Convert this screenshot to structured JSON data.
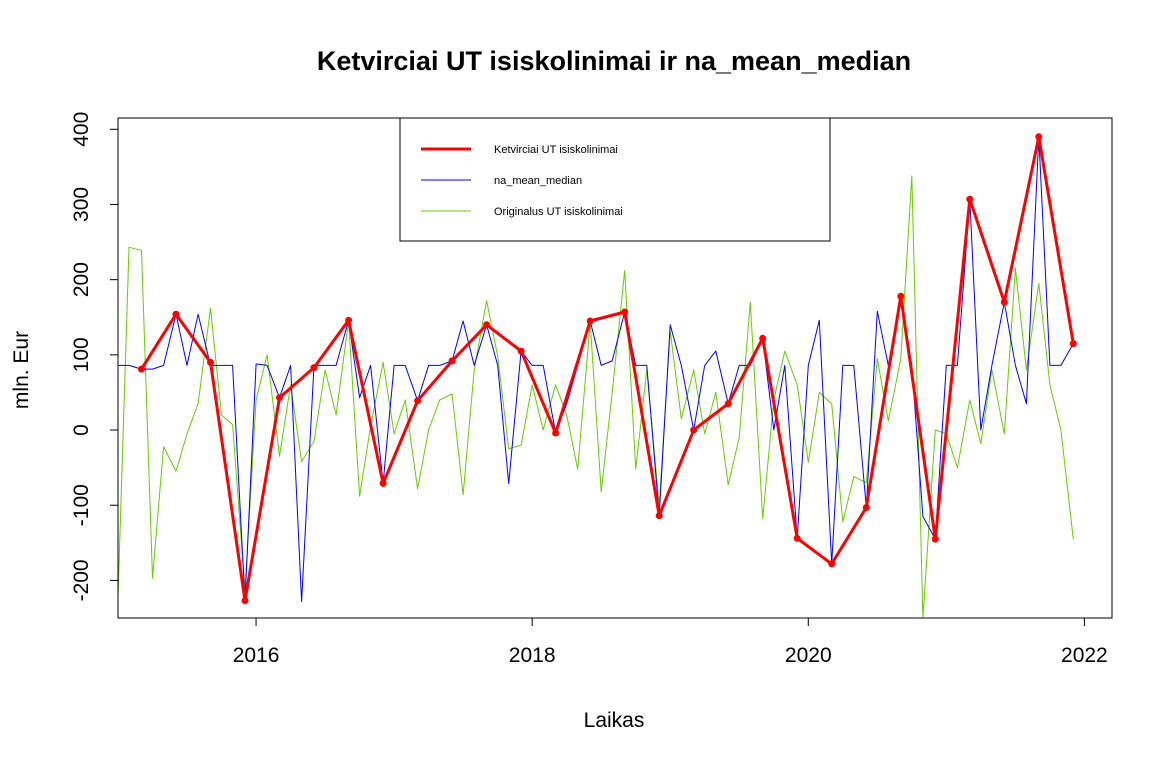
{
  "chart_data": {
    "type": "line",
    "title": "Ketvirciai UT isiskolinimai ir na_mean_median",
    "xlabel": "Laikas",
    "ylabel": "mln. Eur",
    "xlim": [
      2015.0,
      2022.2
    ],
    "ylim": [
      -250,
      415
    ],
    "xticks": [
      2016,
      2018,
      2020,
      2022
    ],
    "yticks": [
      -200,
      -100,
      0,
      100,
      200,
      300,
      400
    ],
    "legend_position": "top",
    "series": [
      {
        "name": "Ketvirciai UT isiskolinimai",
        "color": "#ff0000",
        "points": true,
        "x": [
          2015.17,
          2015.42,
          2015.67,
          2015.92,
          2016.17,
          2016.42,
          2016.67,
          2016.92,
          2017.17,
          2017.42,
          2017.67,
          2017.92,
          2018.17,
          2018.42,
          2018.67,
          2018.92,
          2019.17,
          2019.42,
          2019.67,
          2019.92,
          2020.17,
          2020.42,
          2020.67,
          2020.92,
          2021.17,
          2021.42,
          2021.67,
          2021.92
        ],
        "y": [
          81,
          154,
          90,
          -227,
          43,
          83,
          146,
          -71,
          39,
          92,
          140,
          105,
          -4,
          145,
          157,
          -114,
          0,
          35,
          122,
          -144,
          -178,
          -103,
          178,
          -145,
          307,
          170,
          390,
          115
        ]
      },
      {
        "name": "na_mean_median",
        "color": "#0000ff",
        "points": false,
        "x": [
          2015.0,
          2015.08,
          2015.17,
          2015.25,
          2015.33,
          2015.42,
          2015.5,
          2015.58,
          2015.67,
          2015.75,
          2015.83,
          2015.92,
          2016.0,
          2016.08,
          2016.17,
          2016.25,
          2016.33,
          2016.42,
          2016.5,
          2016.58,
          2016.67,
          2016.75,
          2016.83,
          2016.92,
          2017.0,
          2017.08,
          2017.17,
          2017.25,
          2017.33,
          2017.42,
          2017.5,
          2017.58,
          2017.67,
          2017.75,
          2017.83,
          2017.92,
          2018.0,
          2018.08,
          2018.17,
          2018.25,
          2018.33,
          2018.42,
          2018.5,
          2018.58,
          2018.67,
          2018.75,
          2018.83,
          2018.92,
          2019.0,
          2019.08,
          2019.17,
          2019.25,
          2019.33,
          2019.42,
          2019.5,
          2019.58,
          2019.67,
          2019.75,
          2019.83,
          2019.92,
          2020.0,
          2020.08,
          2020.17,
          2020.25,
          2020.33,
          2020.42,
          2020.5,
          2020.58,
          2020.67,
          2020.75,
          2020.83,
          2020.92,
          2021.0,
          2021.08,
          2021.17,
          2021.25,
          2021.33,
          2021.42,
          2021.5,
          2021.58,
          2021.67,
          2021.75,
          2021.83,
          2021.92
        ],
        "y": [
          86,
          86,
          81,
          81,
          86,
          154,
          86,
          154,
          86,
          86,
          86,
          -227,
          88,
          86,
          43,
          86,
          -228,
          86,
          86,
          86,
          146,
          43,
          86,
          -71,
          86,
          86,
          39,
          86,
          86,
          92,
          145,
          86,
          140,
          86,
          -71,
          105,
          86,
          86,
          -4,
          35,
          86,
          145,
          86,
          92,
          157,
          86,
          86,
          -114,
          140,
          86,
          0,
          86,
          105,
          35,
          86,
          86,
          122,
          0,
          86,
          -144,
          86,
          146,
          -178,
          86,
          86,
          -103,
          158,
          86,
          178,
          86,
          -115,
          -145,
          86,
          86,
          307,
          0,
          86,
          170,
          86,
          35,
          390,
          86,
          86,
          115
        ]
      },
      {
        "name": "Originalus UT isiskolinimai",
        "color": "#66cc00",
        "points": false,
        "x": [
          2015.0,
          2015.08,
          2015.17,
          2015.25,
          2015.33,
          2015.42,
          2015.5,
          2015.58,
          2015.67,
          2015.75,
          2015.83,
          2015.92,
          2016.0,
          2016.08,
          2016.17,
          2016.25,
          2016.33,
          2016.42,
          2016.5,
          2016.58,
          2016.67,
          2016.75,
          2016.83,
          2016.92,
          2017.0,
          2017.08,
          2017.17,
          2017.25,
          2017.33,
          2017.42,
          2017.5,
          2017.58,
          2017.67,
          2017.75,
          2017.83,
          2017.92,
          2018.0,
          2018.08,
          2018.17,
          2018.25,
          2018.33,
          2018.42,
          2018.5,
          2018.58,
          2018.67,
          2018.75,
          2018.83,
          2018.92,
          2019.0,
          2019.08,
          2019.17,
          2019.25,
          2019.33,
          2019.42,
          2019.5,
          2019.58,
          2019.67,
          2019.75,
          2019.83,
          2019.92,
          2020.0,
          2020.08,
          2020.17,
          2020.25,
          2020.33,
          2020.42,
          2020.5,
          2020.58,
          2020.67,
          2020.75,
          2020.83,
          2020.92,
          2021.0,
          2021.08,
          2021.17,
          2021.25,
          2021.33,
          2021.42,
          2021.5,
          2021.58,
          2021.67,
          2021.75,
          2021.83,
          2021.92
        ],
        "y": [
          -222,
          243,
          239,
          -197,
          -22,
          -55,
          -5,
          35,
          162,
          20,
          7,
          -213,
          40,
          100,
          -35,
          60,
          -42,
          -15,
          80,
          20,
          145,
          -88,
          5,
          90,
          -5,
          40,
          -78,
          0,
          40,
          48,
          -86,
          80,
          172,
          98,
          -25,
          -20,
          60,
          0,
          60,
          20,
          -52,
          143,
          -82,
          50,
          212,
          -52,
          80,
          -100,
          132,
          15,
          80,
          -5,
          50,
          -73,
          -10,
          170,
          -118,
          40,
          105,
          60,
          -43,
          50,
          35,
          -122,
          -62,
          -70,
          95,
          12,
          95,
          338,
          -250,
          0,
          -5,
          -50,
          40,
          -18,
          80,
          -5,
          215,
          80,
          195,
          60,
          0,
          -145
        ]
      }
    ]
  }
}
